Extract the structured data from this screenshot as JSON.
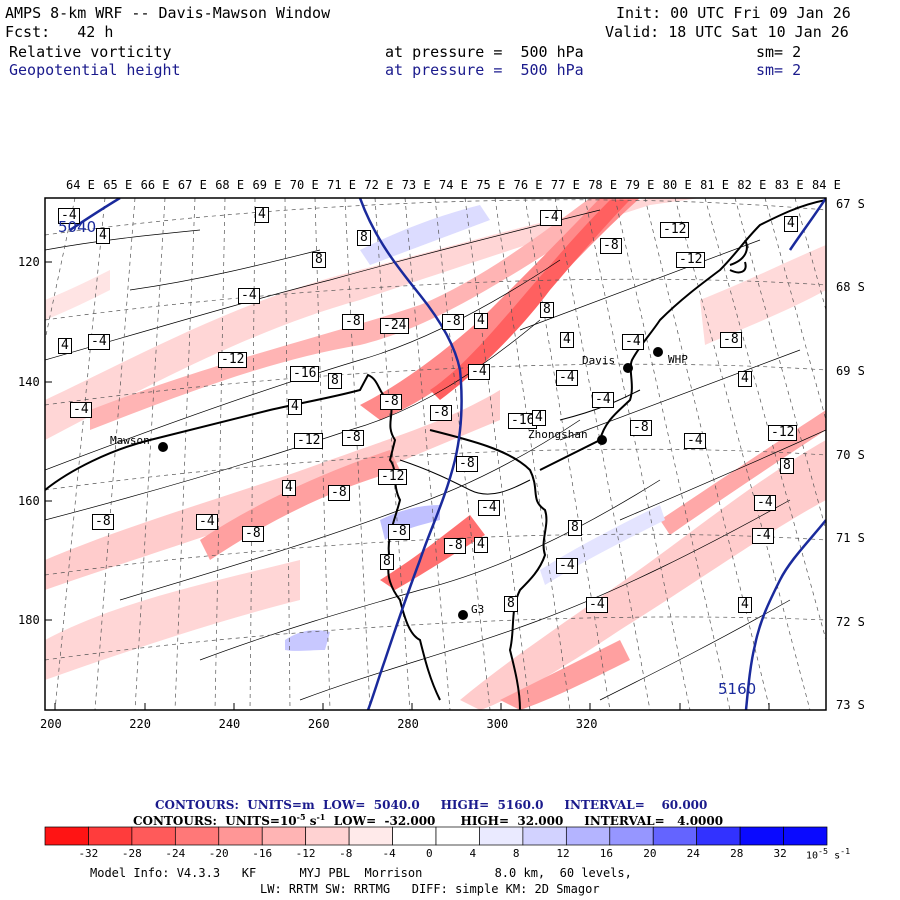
{
  "header": {
    "title": "AMPS 8-km WRF -- Davis-Mawson Window",
    "init": "Init: 00 UTC Fri 09 Jan 26",
    "fcst": "Fcst:   42 h",
    "valid": "Valid: 18 UTC Sat 10 Jan 26",
    "field1": {
      "name": "Relative vorticity",
      "pressure": "at pressure =  500 hPa",
      "sm": "sm= 2"
    },
    "field2": {
      "name": "Geopotential height",
      "pressure": "at pressure =  500 hPa",
      "sm": "sm= 2"
    }
  },
  "axes": {
    "top_lon": [
      "64 E",
      "65 E",
      "66 E",
      "67 E",
      "68 E",
      "69 E",
      "70 E",
      "71 E",
      "72 E",
      "73 E",
      "74 E",
      "75 E",
      "76 E",
      "77 E",
      "78 E",
      "79 E",
      "80 E",
      "81 E",
      "82 E",
      "83 E",
      "84 E"
    ],
    "right_lat": [
      "67 S",
      "68 S",
      "69 S",
      "70 S",
      "71 S",
      "72 S",
      "73 S"
    ],
    "left_y": [
      "120",
      "140",
      "160",
      "180"
    ],
    "bottom_x": [
      "200",
      "220",
      "240",
      "260",
      "280",
      "300",
      "320"
    ]
  },
  "places": [
    {
      "name": "Mawson"
    },
    {
      "name": "Davis"
    },
    {
      "name": "WHP"
    },
    {
      "name": "Zhongshan"
    },
    {
      "name": "G3"
    }
  ],
  "height_labels": [
    "5040",
    "5160"
  ],
  "vort_labels": [
    "-4",
    "4",
    "4",
    "8",
    "-4",
    "8",
    "-8",
    "-12",
    "4",
    "-12",
    "-4",
    "-8",
    "-24",
    "-8",
    "4",
    "8",
    "4",
    "-4",
    "4",
    "-4",
    "-12",
    "-8",
    "-16",
    "8",
    "-4",
    "-4",
    "4",
    "-4",
    "-8",
    "-4",
    "4",
    "-8",
    "-16",
    "4",
    "-12",
    "-8",
    "-8",
    "-12",
    "-4",
    "-8",
    "8",
    "-12",
    "4",
    "-8",
    "-4",
    "-4",
    "-8",
    "-4",
    "-8",
    "8",
    "-8",
    "4",
    "-4",
    "-8",
    "-4",
    "8",
    "-4",
    "8",
    "4"
  ],
  "colorbar": {
    "labels": [
      "-32",
      "-28",
      "-24",
      "-20",
      "-16",
      "-12",
      "-8",
      "-4",
      "0",
      "4",
      "8",
      "12",
      "16",
      "20",
      "24",
      "28",
      "32"
    ],
    "colors": [
      "#ff1414",
      "#ff3c3c",
      "#ff5a5a",
      "#ff7878",
      "#ff9696",
      "#ffb4b4",
      "#ffd2d2",
      "#ffeaea",
      "#ffffff",
      "#ffffff",
      "#eaeaff",
      "#d2d2ff",
      "#b4b4ff",
      "#9696ff",
      "#6464ff",
      "#3232ff",
      "#0a0aff"
    ],
    "units": "10",
    "units_exp": "-5",
    "units_s": "s",
    "units_s_exp": "-1"
  },
  "contours1": {
    "units": "CONTOURS:  UNITS=m  LOW=  5040.0",
    "high": "HIGH=  5160.0",
    "interval": "INTERVAL=    60.000"
  },
  "contours2": {
    "units": "CONTOURS:  UNITS=10",
    "units_exp": "-5",
    "units_rest": " s",
    "units_rest_exp": "-1",
    "low": "  LOW=  -32.000",
    "high": "HIGH=  32.000",
    "interval": "INTERVAL=   4.0000"
  },
  "model_info": {
    "line1": "Model Info: V4.3.3   KF      MYJ PBL  Morrison          8.0 km,  60 levels,",
    "line2": "LW: RRTM SW: RRTMG   DIFF: simple KM: 2D Smagor"
  }
}
